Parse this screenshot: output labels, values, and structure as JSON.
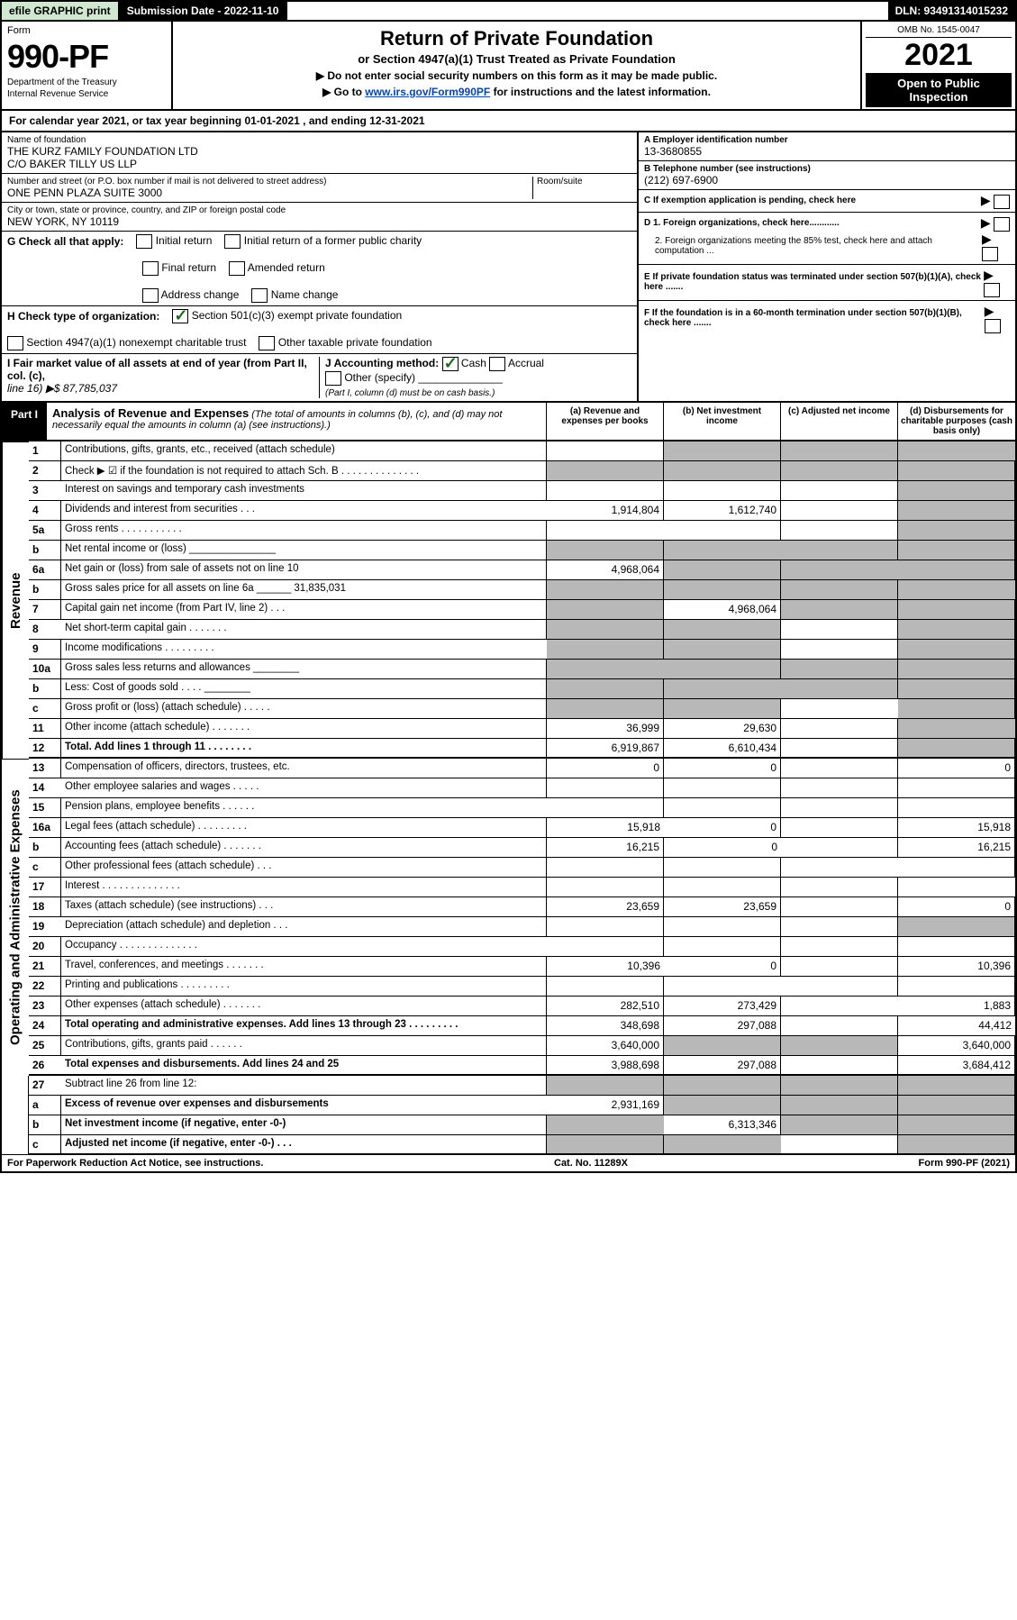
{
  "topbar": {
    "efile_label": "efile GRAPHIC print",
    "submission_label": "Submission Date - 2022-11-10",
    "dln_label": "DLN: 93491314015232"
  },
  "header": {
    "form_word": "Form",
    "form_number": "990-PF",
    "dept1": "Department of the Treasury",
    "dept2": "Internal Revenue Service",
    "title": "Return of Private Foundation",
    "subtitle1": "or Section 4947(a)(1) Trust Treated as Private Foundation",
    "subtitle2a": "▶ Do not enter social security numbers on this form as it may be made public.",
    "subtitle2b_prefix": "▶ Go to ",
    "subtitle2b_link": "www.irs.gov/Form990PF",
    "subtitle2b_suffix": " for instructions and the latest information.",
    "omb": "OMB No. 1545-0047",
    "year": "2021",
    "open_public": "Open to Public Inspection"
  },
  "cal_year": "For calendar year 2021, or tax year beginning 01-01-2021         , and ending 12-31-2021",
  "identity": {
    "name_label": "Name of foundation",
    "name1": "THE KURZ FAMILY FOUNDATION LTD",
    "name2": "C/O BAKER TILLY US LLP",
    "addr_label": "Number and street (or P.O. box number if mail is not delivered to street address)",
    "addr": "ONE PENN PLAZA SUITE 3000",
    "room_label": "Room/suite",
    "city_label": "City or town, state or province, country, and ZIP or foreign postal code",
    "city": "NEW YORK, NY  10119",
    "ein_label": "A Employer identification number",
    "ein": "13-3680855",
    "phone_label": "B Telephone number (see instructions)",
    "phone": "(212) 697-6900",
    "c_label": "C If exemption application is pending, check here",
    "d1_label": "D 1. Foreign organizations, check here............",
    "d2_label": "2. Foreign organizations meeting the 85% test, check here and attach computation ...",
    "e_label": "E  If private foundation status was terminated under section 507(b)(1)(A), check here .......",
    "f_label": "F  If the foundation is in a 60-month termination under section 507(b)(1)(B), check here .......",
    "g_label": "G Check all that apply:",
    "g_opts": [
      "Initial return",
      "Initial return of a former public charity",
      "Final return",
      "Amended return",
      "Address change",
      "Name change"
    ],
    "h_label": "H Check type of organization:",
    "h1": "Section 501(c)(3) exempt private foundation",
    "h2": "Section 4947(a)(1) nonexempt charitable trust",
    "h3": "Other taxable private foundation",
    "i_label": "I Fair market value of all assets at end of year (from Part II, col. (c),",
    "i_line": "line 16) ▶$  87,785,037",
    "j_label": "J Accounting method:",
    "j_cash": "Cash",
    "j_accrual": "Accrual",
    "j_other": "Other (specify)",
    "j_note": "(Part I, column (d) must be on cash basis.)"
  },
  "part1": {
    "label": "Part I",
    "title": "Analysis of Revenue and Expenses",
    "title_note": " (The total of amounts in columns (b), (c), and (d) may not necessarily equal the amounts in column (a) (see instructions).)",
    "col_a": "(a)  Revenue and expenses per books",
    "col_b": "(b)  Net investment income",
    "col_c": "(c)  Adjusted net income",
    "col_d": "(d)  Disbursements for charitable purposes (cash basis only)",
    "side_rev": "Revenue",
    "side_exp": "Operating and Administrative Expenses",
    "rows": [
      {
        "n": "1",
        "d": "Contributions, gifts, grants, etc., received (attach schedule)",
        "a": "",
        "b": "",
        "c": "",
        "dd": "",
        "sb": true,
        "sc": true,
        "sd": true
      },
      {
        "n": "2",
        "d": "Check ▶ ☑ if the foundation is not required to attach Sch. B    .  .  .  .  .  .  .  .  .  .  .  .  .  .",
        "a": "",
        "b": "",
        "c": "",
        "dd": "",
        "sa": true,
        "sb": true,
        "sc": true,
        "sd": true
      },
      {
        "n": "3",
        "d": "Interest on savings and temporary cash investments",
        "a": "",
        "b": "",
        "c": "",
        "dd": "",
        "sd": true
      },
      {
        "n": "4",
        "d": "Dividends and interest from securities   .   .   .",
        "a": "1,914,804",
        "b": "1,612,740",
        "c": "",
        "dd": "",
        "sd": true
      },
      {
        "n": "5a",
        "d": "Gross rents    .   .   .   .   .   .   .   .   .   .   .",
        "a": "",
        "b": "",
        "c": "",
        "dd": "",
        "sd": true
      },
      {
        "n": "b",
        "d": "Net rental income or (loss)  _______________",
        "a": "",
        "b": "",
        "c": "",
        "dd": "",
        "sa": true,
        "sb": true,
        "sc": true,
        "sd": true
      },
      {
        "n": "6a",
        "d": "Net gain or (loss) from sale of assets not on line 10",
        "a": "4,968,064",
        "b": "",
        "c": "",
        "dd": "",
        "sb": true,
        "sc": true,
        "sd": true
      },
      {
        "n": "b",
        "d": "Gross sales price for all assets on line 6a ______ 31,835,031",
        "a": "",
        "b": "",
        "c": "",
        "dd": "",
        "sa": true,
        "sb": true,
        "sc": true,
        "sd": true
      },
      {
        "n": "7",
        "d": "Capital gain net income (from Part IV, line 2)   .   .   .",
        "a": "",
        "b": "4,968,064",
        "c": "",
        "dd": "",
        "sa": true,
        "sc": true,
        "sd": true
      },
      {
        "n": "8",
        "d": "Net short-term capital gain   .   .   .   .   .   .   .",
        "a": "",
        "b": "",
        "c": "",
        "dd": "",
        "sa": true,
        "sb": true,
        "sd": true
      },
      {
        "n": "9",
        "d": "Income modifications   .   .   .   .   .   .   .   .   .",
        "a": "",
        "b": "",
        "c": "",
        "dd": "",
        "sa": true,
        "sb": true,
        "sd": true
      },
      {
        "n": "10a",
        "d": "Gross sales less returns and allowances  ________",
        "a": "",
        "b": "",
        "c": "",
        "dd": "",
        "sa": true,
        "sb": true,
        "sc": true,
        "sd": true
      },
      {
        "n": "b",
        "d": "Less: Cost of goods sold     .   .   .   .   ________",
        "a": "",
        "b": "",
        "c": "",
        "dd": "",
        "sa": true,
        "sb": true,
        "sc": true,
        "sd": true
      },
      {
        "n": "c",
        "d": "Gross profit or (loss) (attach schedule)   .   .   .   .   .",
        "a": "",
        "b": "",
        "c": "",
        "dd": "",
        "sa": true,
        "sb": true,
        "sd": true
      },
      {
        "n": "11",
        "d": "Other income (attach schedule)   .   .   .   .   .   .   .",
        "a": "36,999",
        "b": "29,630",
        "c": "",
        "dd": "",
        "sd": true
      },
      {
        "n": "12",
        "d": "Total. Add lines 1 through 11   .   .   .   .   .   .   .   .",
        "a": "6,919,867",
        "b": "6,610,434",
        "c": "",
        "dd": "",
        "bold": true,
        "sd": true,
        "thick": true
      }
    ],
    "exp_rows": [
      {
        "n": "13",
        "d": "Compensation of officers, directors, trustees, etc.",
        "a": "0",
        "b": "0",
        "c": "",
        "dd": "0"
      },
      {
        "n": "14",
        "d": "Other employee salaries and wages   .   .   .   .   .",
        "a": "",
        "b": "",
        "c": "",
        "dd": ""
      },
      {
        "n": "15",
        "d": "Pension plans, employee benefits   .   .   .   .   .   .",
        "a": "",
        "b": "",
        "c": "",
        "dd": ""
      },
      {
        "n": "16a",
        "d": "Legal fees (attach schedule) .   .   .   .   .   .   .   .   .",
        "a": "15,918",
        "b": "0",
        "c": "",
        "dd": "15,918"
      },
      {
        "n": "b",
        "d": "Accounting fees (attach schedule) .   .   .   .   .   .   .",
        "a": "16,215",
        "b": "0",
        "c": "",
        "dd": "16,215"
      },
      {
        "n": "c",
        "d": "Other professional fees (attach schedule)   .   .   .",
        "a": "",
        "b": "",
        "c": "",
        "dd": ""
      },
      {
        "n": "17",
        "d": "Interest  .   .   .   .   .   .   .   .   .   .   .   .   .   .",
        "a": "",
        "b": "",
        "c": "",
        "dd": ""
      },
      {
        "n": "18",
        "d": "Taxes (attach schedule) (see instructions)    .   .   .",
        "a": "23,659",
        "b": "23,659",
        "c": "",
        "dd": "0"
      },
      {
        "n": "19",
        "d": "Depreciation (attach schedule) and depletion   .   .   .",
        "a": "",
        "b": "",
        "c": "",
        "dd": "",
        "sd": true
      },
      {
        "n": "20",
        "d": "Occupancy .   .   .   .   .   .   .   .   .   .   .   .   .   .",
        "a": "",
        "b": "",
        "c": "",
        "dd": ""
      },
      {
        "n": "21",
        "d": "Travel, conferences, and meetings .   .   .   .   .   .   .",
        "a": "10,396",
        "b": "0",
        "c": "",
        "dd": "10,396"
      },
      {
        "n": "22",
        "d": "Printing and publications .   .   .   .   .   .   .   .   .",
        "a": "",
        "b": "",
        "c": "",
        "dd": ""
      },
      {
        "n": "23",
        "d": "Other expenses (attach schedule) .   .   .   .   .   .   .",
        "a": "282,510",
        "b": "273,429",
        "c": "",
        "dd": "1,883"
      },
      {
        "n": "24",
        "d": "Total operating and administrative expenses. Add lines 13 through 23   .   .   .   .   .   .   .   .   .",
        "a": "348,698",
        "b": "297,088",
        "c": "",
        "dd": "44,412",
        "bold": true
      },
      {
        "n": "25",
        "d": "Contributions, gifts, grants paid    .   .   .   .   .   .",
        "a": "3,640,000",
        "b": "",
        "c": "",
        "dd": "3,640,000",
        "sb": true,
        "sc": true
      },
      {
        "n": "26",
        "d": "Total expenses and disbursements. Add lines 24 and 25",
        "a": "3,988,698",
        "b": "297,088",
        "c": "",
        "dd": "3,684,412",
        "bold": true,
        "thick": true
      }
    ],
    "final_rows": [
      {
        "n": "27",
        "d": "Subtract line 26 from line 12:",
        "a": "",
        "b": "",
        "c": "",
        "dd": "",
        "sa": true,
        "sb": true,
        "sc": true,
        "sd": true
      },
      {
        "n": "a",
        "d": "Excess of revenue over expenses and disbursements",
        "a": "2,931,169",
        "b": "",
        "c": "",
        "dd": "",
        "bold": true,
        "sb": true,
        "sc": true,
        "sd": true
      },
      {
        "n": "b",
        "d": "Net investment income (if negative, enter -0-)",
        "a": "",
        "b": "6,313,346",
        "c": "",
        "dd": "",
        "bold": true,
        "sa": true,
        "sc": true,
        "sd": true
      },
      {
        "n": "c",
        "d": "Adjusted net income (if negative, enter -0-)   .   .   .",
        "a": "",
        "b": "",
        "c": "",
        "dd": "",
        "bold": true,
        "sa": true,
        "sb": true,
        "sd": true,
        "thick": true
      }
    ]
  },
  "footer": {
    "left": "For Paperwork Reduction Act Notice, see instructions.",
    "mid": "Cat. No. 11289X",
    "right": "Form 990-PF (2021)"
  },
  "colors": {
    "efile_bg": "#cfe8cf",
    "black": "#000000",
    "shade": "#b8b8b8",
    "link": "#0645ad",
    "check": "#1a6b1a"
  }
}
